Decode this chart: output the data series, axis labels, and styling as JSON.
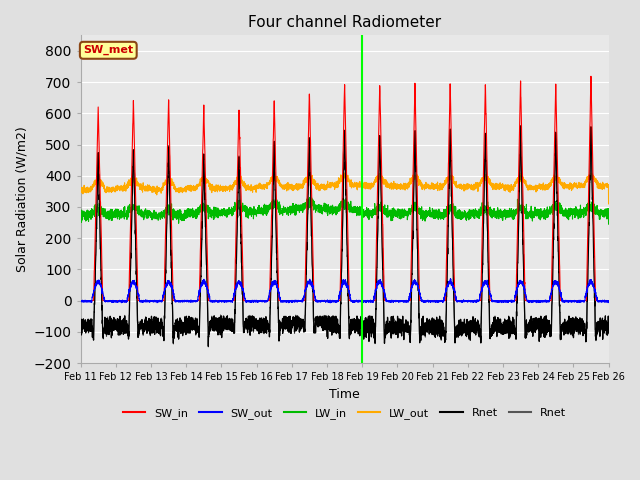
{
  "title": "Four channel Radiometer",
  "xlabel": "Time",
  "ylabel": "Solar Radiation (W/m2)",
  "ylim": [
    -200,
    850
  ],
  "yticks": [
    -200,
    -100,
    0,
    100,
    200,
    300,
    400,
    500,
    600,
    700,
    800
  ],
  "x_labels": [
    "Feb 11",
    "Feb 12",
    "Feb 13",
    "Feb 14",
    "Feb 15",
    "Feb 16",
    "Feb 17",
    "Feb 18",
    "Feb 19",
    "Feb 20",
    "Feb 21",
    "Feb 22",
    "Feb 23",
    "Feb 24",
    "Feb 25",
    "Feb 26"
  ],
  "n_days": 15,
  "figure_bg": "#e0e0e0",
  "plot_bg": "#e8e8e8",
  "grid_color": "#ffffff",
  "sw_in_color": "#ff0000",
  "sw_out_color": "#0000ff",
  "lw_in_color": "#00bb00",
  "lw_out_color": "#ffaa00",
  "rnet_color": "#000000",
  "rnet2_color": "#555555",
  "vline_color": "#00ff00",
  "vline_x": 8.0,
  "annotation_text": "SW_met",
  "annotation_bg": "#ffff99",
  "annotation_border": "#8B4513",
  "annotation_text_color": "#cc0000",
  "legend_entries": [
    "SW_in",
    "SW_out",
    "LW_in",
    "LW_out",
    "Rnet",
    "Rnet"
  ],
  "legend_colors": [
    "#ff0000",
    "#0000ff",
    "#00bb00",
    "#ffaa00",
    "#000000",
    "#555555"
  ]
}
